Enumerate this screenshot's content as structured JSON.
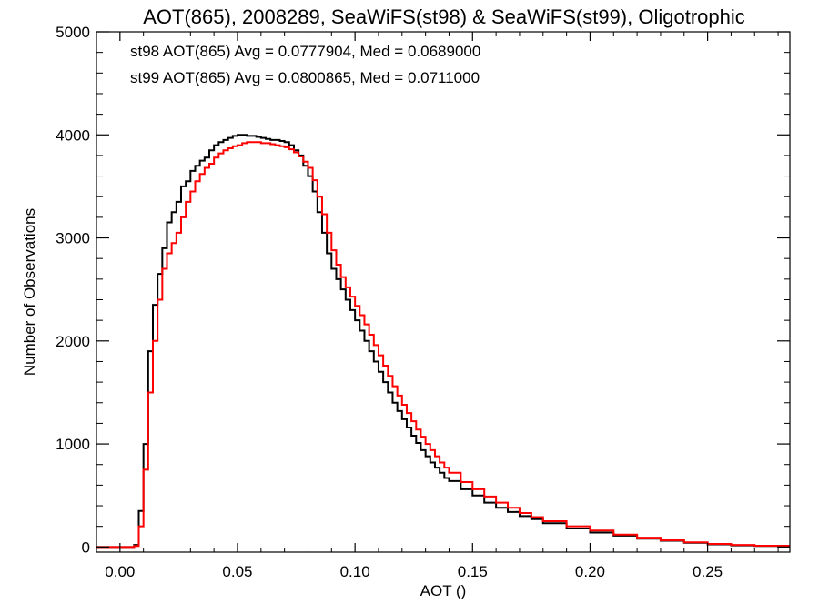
{
  "chart_data": {
    "type": "line",
    "step": true,
    "title": "AOT(865), 2008289, SeaWiFS(st98) & SeaWiFS(st99), Oligotrophic",
    "xlabel": "AOT ()",
    "ylabel": "Number of Observations",
    "xlim": [
      -0.01,
      0.285
    ],
    "ylim": [
      -50,
      5000
    ],
    "xticks": [
      0.0,
      0.05,
      0.1,
      0.15,
      0.2,
      0.25
    ],
    "xtick_labels": [
      "0.00",
      "0.05",
      "0.10",
      "0.15",
      "0.20",
      "0.25"
    ],
    "yticks": [
      0,
      1000,
      2000,
      3000,
      4000,
      5000
    ],
    "ytick_labels": [
      "0",
      "1000",
      "2000",
      "3000",
      "4000",
      "5000"
    ],
    "grid": false,
    "annotations": [
      {
        "text": "st98 AOT(865) Avg = 0.0777904, Med = 0.0689000",
        "color": "#000000"
      },
      {
        "text": "st99 AOT(865) Avg = 0.0800865, Med = 0.0711000",
        "color": "#ff0000"
      }
    ],
    "series": [
      {
        "color": "#000000",
        "x": [
          -0.01,
          0.0,
          0.006,
          0.008,
          0.01,
          0.012,
          0.014,
          0.016,
          0.018,
          0.02,
          0.022,
          0.024,
          0.026,
          0.028,
          0.03,
          0.032,
          0.034,
          0.036,
          0.038,
          0.04,
          0.042,
          0.044,
          0.046,
          0.048,
          0.05,
          0.052,
          0.054,
          0.056,
          0.058,
          0.06,
          0.062,
          0.064,
          0.066,
          0.068,
          0.07,
          0.072,
          0.074,
          0.076,
          0.078,
          0.08,
          0.082,
          0.084,
          0.086,
          0.088,
          0.09,
          0.092,
          0.094,
          0.096,
          0.098,
          0.1,
          0.102,
          0.104,
          0.106,
          0.108,
          0.11,
          0.112,
          0.114,
          0.116,
          0.118,
          0.12,
          0.122,
          0.124,
          0.126,
          0.128,
          0.13,
          0.132,
          0.134,
          0.136,
          0.138,
          0.14,
          0.145,
          0.15,
          0.155,
          0.16,
          0.165,
          0.17,
          0.175,
          0.18,
          0.19,
          0.2,
          0.21,
          0.22,
          0.23,
          0.24,
          0.25,
          0.26,
          0.27,
          0.285
        ],
        "y": [
          0,
          0,
          20,
          350,
          1000,
          1900,
          2350,
          2650,
          2900,
          3150,
          3250,
          3350,
          3500,
          3550,
          3650,
          3700,
          3750,
          3780,
          3850,
          3900,
          3930,
          3950,
          3970,
          3990,
          4000,
          4000,
          3990,
          3990,
          3980,
          3970,
          3960,
          3950,
          3950,
          3940,
          3930,
          3900,
          3850,
          3800,
          3700,
          3600,
          3450,
          3250,
          3050,
          2850,
          2700,
          2600,
          2500,
          2400,
          2300,
          2200,
          2100,
          2000,
          1900,
          1800,
          1700,
          1600,
          1500,
          1400,
          1320,
          1240,
          1160,
          1080,
          1010,
          940,
          880,
          820,
          770,
          720,
          670,
          640,
          560,
          500,
          430,
          380,
          340,
          300,
          270,
          230,
          180,
          140,
          110,
          80,
          60,
          40,
          25,
          15,
          10,
          5
        ]
      },
      {
        "color": "#ff0000",
        "x": [
          -0.01,
          0.0,
          0.006,
          0.008,
          0.01,
          0.012,
          0.014,
          0.016,
          0.018,
          0.02,
          0.022,
          0.024,
          0.026,
          0.028,
          0.03,
          0.032,
          0.034,
          0.036,
          0.038,
          0.04,
          0.042,
          0.044,
          0.046,
          0.048,
          0.05,
          0.052,
          0.054,
          0.056,
          0.058,
          0.06,
          0.062,
          0.064,
          0.066,
          0.068,
          0.07,
          0.072,
          0.074,
          0.076,
          0.078,
          0.08,
          0.082,
          0.084,
          0.086,
          0.088,
          0.09,
          0.092,
          0.094,
          0.096,
          0.098,
          0.1,
          0.102,
          0.104,
          0.106,
          0.108,
          0.11,
          0.112,
          0.114,
          0.116,
          0.118,
          0.12,
          0.122,
          0.124,
          0.126,
          0.128,
          0.13,
          0.132,
          0.134,
          0.136,
          0.138,
          0.14,
          0.145,
          0.15,
          0.155,
          0.16,
          0.165,
          0.17,
          0.175,
          0.18,
          0.19,
          0.2,
          0.21,
          0.22,
          0.23,
          0.24,
          0.25,
          0.26,
          0.27,
          0.285
        ],
        "y": [
          0,
          0,
          10,
          200,
          750,
          1500,
          2000,
          2400,
          2700,
          2850,
          2950,
          3050,
          3200,
          3350,
          3450,
          3550,
          3620,
          3680,
          3720,
          3780,
          3820,
          3850,
          3870,
          3890,
          3900,
          3920,
          3930,
          3930,
          3930,
          3920,
          3920,
          3910,
          3900,
          3890,
          3880,
          3860,
          3830,
          3790,
          3740,
          3680,
          3560,
          3400,
          3230,
          3050,
          2880,
          2740,
          2620,
          2520,
          2430,
          2340,
          2250,
          2160,
          2060,
          1960,
          1860,
          1760,
          1660,
          1560,
          1470,
          1380,
          1300,
          1220,
          1140,
          1070,
          1000,
          940,
          880,
          820,
          770,
          720,
          630,
          560,
          490,
          430,
          380,
          330,
          290,
          250,
          200,
          160,
          120,
          90,
          65,
          45,
          30,
          20,
          12,
          5
        ]
      }
    ]
  }
}
